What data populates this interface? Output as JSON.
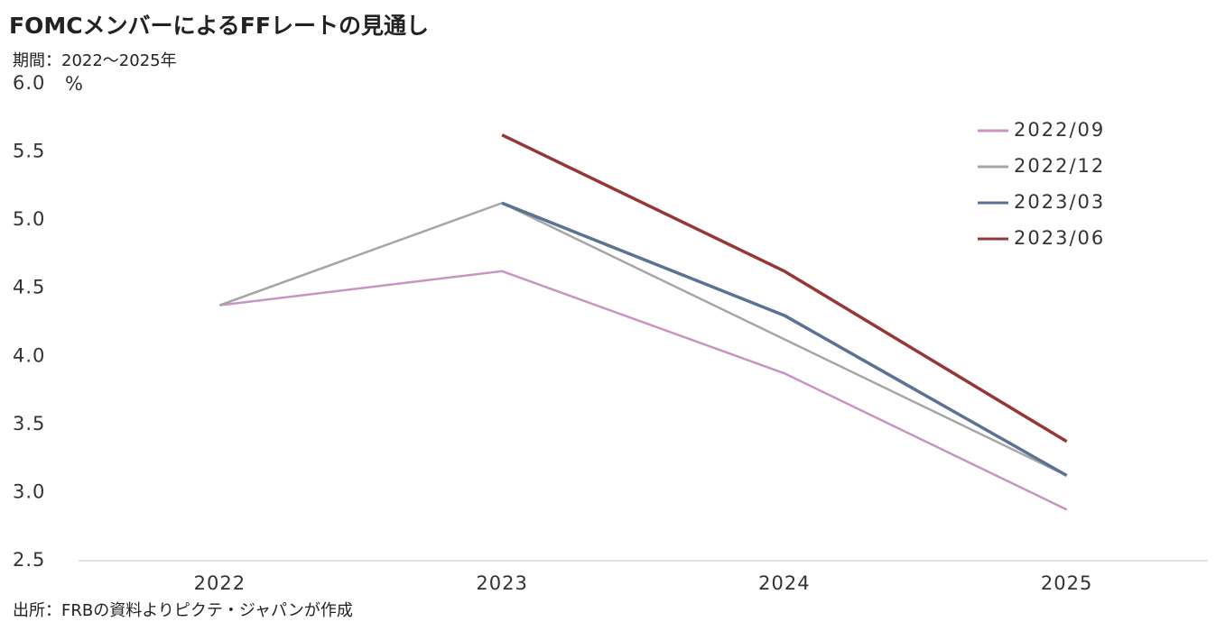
{
  "chart_data": {
    "type": "line",
    "title": "FOMCメンバーによるFFレートの見通し",
    "subtitle": "期間：2022～2025年",
    "y_unit": "%",
    "source": "出所：FRBの資料よりピクテ・ジャパンが作成",
    "categories": [
      "2022",
      "2023",
      "2024",
      "2025"
    ],
    "series": [
      {
        "name": "2022/09",
        "color": "#c993c4",
        "values": [
          4.375,
          4.625,
          3.875,
          2.875
        ]
      },
      {
        "name": "2022/12",
        "color": "#a6a6a6",
        "values": [
          4.375,
          5.125,
          4.125,
          3.125
        ]
      },
      {
        "name": "2023/03",
        "color": "#5a7395",
        "values": [
          null,
          5.125,
          4.3,
          3.125
        ]
      },
      {
        "name": "2023/06",
        "color": "#953735",
        "values": [
          null,
          5.625,
          4.625,
          3.375
        ]
      }
    ],
    "ylim": [
      2.5,
      6
    ],
    "yticks": [
      2.5,
      {
        "value": 3,
        "label": "3.0"
      },
      3.5,
      {
        "value": 4,
        "label": "4.0"
      },
      4.5,
      {
        "value": 5,
        "label": "5.0"
      },
      5.5,
      {
        "value": 6,
        "label": "6.0"
      }
    ],
    "grid": false,
    "legend": "upper right"
  }
}
